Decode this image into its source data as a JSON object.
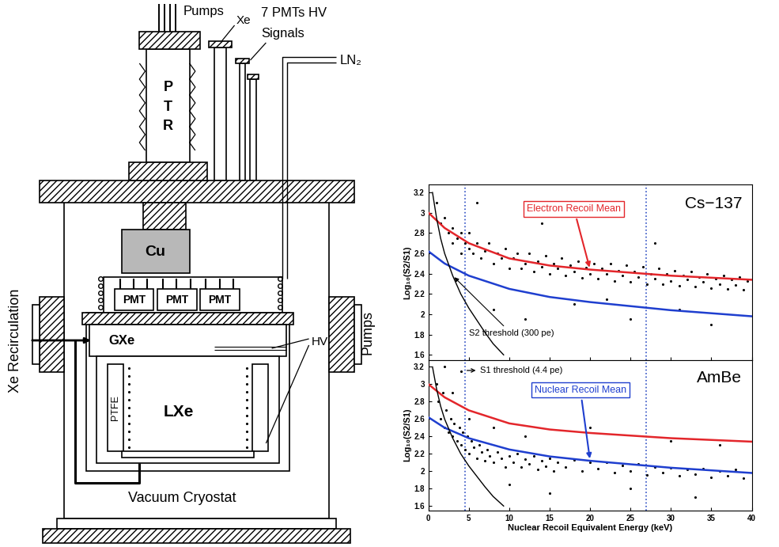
{
  "diagram": {
    "pumps_top": "Pumps",
    "xe": "Xe",
    "pmts_hv": "7 PMTs HV",
    "signals": "Signals",
    "ln2": "LN₂",
    "ptr": "PTR",
    "cu": "Cu",
    "pmts": [
      "PMT",
      "PMT",
      "PMT"
    ],
    "gxe": "GXe",
    "lxe": "LXe",
    "ptfe": "PTFE",
    "hv": "HV",
    "recirculation": "Xe Recirculation",
    "pumps_side": "Pumps",
    "cryostat": "Vacuum Cryostat"
  },
  "chart_data": [
    {
      "type": "scatter",
      "title": "Cs−137",
      "y_label": "Log₁₀(S2/S1)",
      "xlim": [
        0,
        40
      ],
      "xticks": [
        0,
        5,
        10,
        15,
        20,
        25,
        30,
        35,
        40
      ],
      "ylim": [
        1.55,
        3.28
      ],
      "yticks": [
        1.6,
        1.8,
        2,
        2.2,
        2.4,
        2.6,
        2.8,
        3,
        3.2
      ],
      "tick_labels": "y",
      "vlines": [
        4.5,
        26.9
      ],
      "series": [
        {
          "type": "scatter",
          "color": "black",
          "marker": "o",
          "x": [
            1,
            1.5,
            2,
            2.5,
            3,
            3,
            3.5,
            4,
            4,
            4.5,
            5,
            5,
            5.5,
            6,
            6.5,
            7,
            7.5,
            8,
            8.5,
            9,
            9.5,
            10,
            10.5,
            11,
            11.5,
            12,
            12.5,
            13,
            13.5,
            14,
            14.5,
            15,
            15.5,
            16,
            16.5,
            17,
            17.5,
            18,
            18.5,
            19,
            19.5,
            20,
            20.5,
            21,
            21.5,
            22,
            22.5,
            23,
            23.5,
            24,
            24.5,
            25,
            25.5,
            26,
            26.5,
            27,
            27.5,
            28,
            28.5,
            29,
            29.5,
            30,
            30.5,
            31,
            31.5,
            32,
            32.5,
            33,
            33.5,
            34,
            34.5,
            35,
            35.5,
            36,
            36.5,
            37,
            37.5,
            38,
            38.5,
            39,
            39.5,
            8,
            12,
            18,
            25,
            31,
            6,
            14,
            28,
            35,
            22
          ],
          "values": [
            3.1,
            2.9,
            2.95,
            2.8,
            2.85,
            2.7,
            2.75,
            2.8,
            2.6,
            2.7,
            2.65,
            2.8,
            2.6,
            2.7,
            2.55,
            2.62,
            2.7,
            2.5,
            2.6,
            2.55,
            2.65,
            2.45,
            2.55,
            2.6,
            2.45,
            2.5,
            2.6,
            2.42,
            2.52,
            2.47,
            2.58,
            2.4,
            2.5,
            2.45,
            2.55,
            2.38,
            2.48,
            2.42,
            2.52,
            2.36,
            2.46,
            2.4,
            2.5,
            2.35,
            2.45,
            2.4,
            2.5,
            2.33,
            2.43,
            2.38,
            2.48,
            2.32,
            2.42,
            2.37,
            2.47,
            2.3,
            2.4,
            2.35,
            2.45,
            2.3,
            2.4,
            2.33,
            2.43,
            2.28,
            2.38,
            2.34,
            2.42,
            2.27,
            2.37,
            2.32,
            2.4,
            2.26,
            2.35,
            2.3,
            2.38,
            2.25,
            2.34,
            2.29,
            2.37,
            2.24,
            2.33,
            2.05,
            1.95,
            2.1,
            1.95,
            2.05,
            3.1,
            2.9,
            2.7,
            1.9,
            2.15
          ]
        },
        {
          "type": "line",
          "name": "Electron Recoil Mean",
          "color": "#e3262b",
          "line_style": "solid",
          "x": [
            0,
            2,
            5,
            10,
            15,
            20,
            25,
            30,
            35,
            40
          ],
          "values": [
            3.0,
            2.85,
            2.7,
            2.55,
            2.48,
            2.44,
            2.41,
            2.38,
            2.36,
            2.34
          ]
        },
        {
          "type": "line",
          "color": "#1f3fcf",
          "line_style": "solid",
          "x": [
            0,
            2,
            5,
            10,
            15,
            20,
            25,
            30,
            35,
            40
          ],
          "values": [
            2.62,
            2.5,
            2.38,
            2.25,
            2.17,
            2.12,
            2.08,
            2.04,
            2.01,
            1.98
          ]
        },
        {
          "type": "line",
          "name": "S2 threshold (300 pe)",
          "color": "black",
          "line_style": "solid",
          "x": [
            0.5,
            1,
            1.5,
            2,
            3,
            4,
            5,
            6,
            7,
            8,
            9.3
          ],
          "values": [
            3.2,
            2.95,
            2.75,
            2.6,
            2.38,
            2.2,
            2.06,
            1.94,
            1.82,
            1.71,
            1.6
          ]
        }
      ]
    },
    {
      "type": "scatter",
      "title": "AmBe",
      "x_label": "Nuclear Recoil Equivalent Energy (keV)",
      "y_label": "Log₁₀(S2/S1)",
      "xlim": [
        0,
        40
      ],
      "xticks": [
        0,
        5,
        10,
        15,
        20,
        25,
        30,
        35,
        40
      ],
      "ylim": [
        1.55,
        3.28
      ],
      "yticks": [
        1.6,
        1.8,
        2,
        2.2,
        2.4,
        2.6,
        2.8,
        3,
        3.2
      ],
      "vlines": [
        4.5,
        26.9
      ],
      "annotations": [
        {
          "text": "S1 threshold (4.4 pe)"
        }
      ],
      "series": [
        {
          "type": "scatter",
          "color": "black",
          "marker": "o",
          "x": [
            1,
            1.2,
            1.5,
            1.8,
            2,
            2.2,
            2.5,
            2.8,
            3,
            3.2,
            3.5,
            3.8,
            4,
            4.2,
            4.5,
            4.8,
            5,
            5.3,
            5.6,
            6,
            6.3,
            6.6,
            7,
            7.3,
            7.6,
            8,
            8.5,
            9,
            9.5,
            10,
            10.5,
            11,
            11.5,
            12,
            12.5,
            13,
            13.5,
            14,
            14.5,
            15,
            15.5,
            16,
            17,
            18,
            19,
            20,
            21,
            22,
            23,
            24,
            25,
            26,
            27,
            28,
            29,
            30,
            31,
            32,
            33,
            34,
            35,
            36,
            37,
            38,
            39,
            3,
            5,
            8,
            12,
            20,
            30,
            25,
            15,
            33,
            10,
            36,
            4,
            2
          ],
          "values": [
            3.0,
            2.8,
            2.6,
            2.9,
            2.5,
            2.7,
            2.45,
            2.6,
            2.4,
            2.55,
            2.35,
            2.5,
            2.3,
            2.45,
            2.25,
            2.4,
            2.2,
            2.35,
            2.28,
            2.15,
            2.3,
            2.22,
            2.12,
            2.25,
            2.18,
            2.1,
            2.22,
            2.15,
            2.05,
            2.18,
            2.1,
            2.2,
            2.05,
            2.14,
            2.08,
            2.18,
            2.02,
            2.12,
            2.06,
            2.15,
            2.0,
            2.1,
            2.05,
            2.13,
            2.0,
            2.1,
            2.03,
            2.1,
            1.98,
            2.07,
            2.0,
            2.08,
            1.96,
            2.05,
            1.98,
            2.04,
            1.95,
            2.02,
            1.97,
            2.03,
            1.93,
            2.0,
            1.95,
            2.02,
            1.92,
            2.9,
            2.6,
            2.5,
            2.4,
            2.5,
            2.35,
            1.8,
            1.75,
            1.7,
            1.85,
            2.3,
            3.15,
            3.2
          ]
        },
        {
          "type": "line",
          "color": "#e3262b",
          "line_style": "solid",
          "x": [
            0,
            2,
            5,
            10,
            15,
            20,
            25,
            30,
            35,
            40
          ],
          "values": [
            3.0,
            2.85,
            2.7,
            2.55,
            2.48,
            2.44,
            2.41,
            2.38,
            2.36,
            2.34
          ]
        },
        {
          "type": "line",
          "name": "Nuclear Recoil Mean",
          "color": "#1f3fcf",
          "line_style": "solid",
          "x": [
            0,
            2,
            5,
            10,
            15,
            20,
            25,
            30,
            35,
            40
          ],
          "values": [
            2.62,
            2.5,
            2.38,
            2.25,
            2.17,
            2.12,
            2.08,
            2.04,
            2.01,
            1.98
          ]
        },
        {
          "type": "line",
          "color": "black",
          "line_style": "solid",
          "x": [
            0.5,
            1,
            1.5,
            2,
            3,
            4,
            5,
            6,
            7,
            8,
            9.3
          ],
          "values": [
            3.2,
            2.95,
            2.75,
            2.6,
            2.38,
            2.2,
            2.06,
            1.94,
            1.82,
            1.71,
            1.6
          ]
        }
      ]
    }
  ]
}
